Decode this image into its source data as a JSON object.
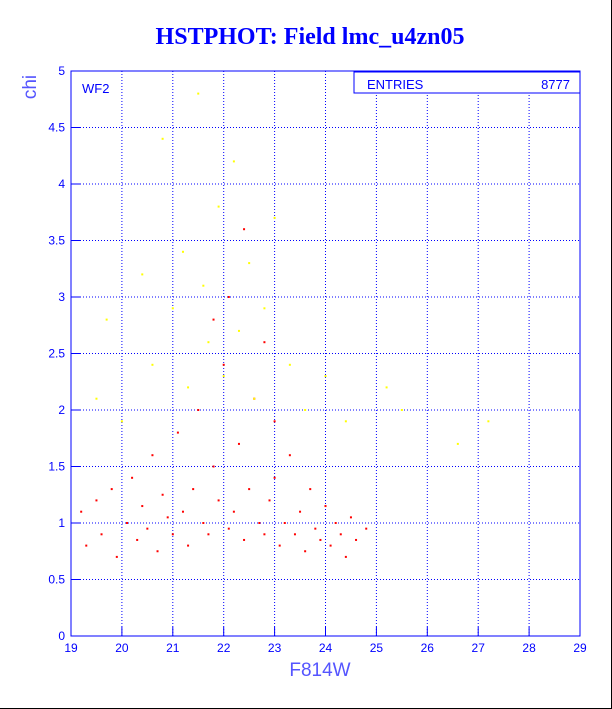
{
  "chart_data": {
    "type": "scatter",
    "title": "HSTPHOT: Field lmc_u4zn05",
    "panel_label": "WF2",
    "xlabel": "F814W",
    "ylabel": "chi",
    "xlim": [
      19,
      29
    ],
    "ylim": [
      0,
      5
    ],
    "x_ticks": [
      "19",
      "20",
      "21",
      "22",
      "23",
      "24",
      "25",
      "26",
      "27",
      "28",
      "29"
    ],
    "y_ticks": [
      "0",
      "0.5",
      "1",
      "1.5",
      "2",
      "2.5",
      "3",
      "3.5",
      "4",
      "4.5",
      "5"
    ],
    "grid": true,
    "stats_box": {
      "label": "ENTRIES",
      "value": "8777"
    },
    "colors": {
      "primary": "#ff0000",
      "secondary": "#ffff00",
      "axes": "#0000ff",
      "grid": "#0000ff"
    },
    "series": [
      {
        "color": "#ff0000",
        "points": [
          [
            19.2,
            1.1
          ],
          [
            19.3,
            0.8
          ],
          [
            19.5,
            1.2
          ],
          [
            19.6,
            0.9
          ],
          [
            19.8,
            1.3
          ],
          [
            19.9,
            0.7
          ],
          [
            20.1,
            1.0
          ],
          [
            20.2,
            1.4
          ],
          [
            20.3,
            0.85
          ],
          [
            20.4,
            1.15
          ],
          [
            20.5,
            0.95
          ],
          [
            20.6,
            1.6
          ],
          [
            20.7,
            0.75
          ],
          [
            20.8,
            1.25
          ],
          [
            20.9,
            1.05
          ],
          [
            21.0,
            0.9
          ],
          [
            21.1,
            1.8
          ],
          [
            21.2,
            1.1
          ],
          [
            21.3,
            0.8
          ],
          [
            21.4,
            1.3
          ],
          [
            21.5,
            2.0
          ],
          [
            21.6,
            1.0
          ],
          [
            21.7,
            0.9
          ],
          [
            21.8,
            1.5
          ],
          [
            21.9,
            1.2
          ],
          [
            22.0,
            2.4
          ],
          [
            22.1,
            0.95
          ],
          [
            22.2,
            1.1
          ],
          [
            22.3,
            1.7
          ],
          [
            22.4,
            0.85
          ],
          [
            22.5,
            1.3
          ],
          [
            22.6,
            2.1
          ],
          [
            22.7,
            1.0
          ],
          [
            22.8,
            0.9
          ],
          [
            22.9,
            1.2
          ],
          [
            23.0,
            1.4
          ],
          [
            23.1,
            0.8
          ],
          [
            23.2,
            1.0
          ],
          [
            23.3,
            1.6
          ],
          [
            23.4,
            0.9
          ],
          [
            23.5,
            1.1
          ],
          [
            23.6,
            0.75
          ],
          [
            23.7,
            1.3
          ],
          [
            23.8,
            0.95
          ],
          [
            23.9,
            0.85
          ],
          [
            24.0,
            1.15
          ],
          [
            24.1,
            0.8
          ],
          [
            24.2,
            1.0
          ],
          [
            24.3,
            0.9
          ],
          [
            24.4,
            0.7
          ],
          [
            24.5,
            1.05
          ],
          [
            24.6,
            0.85
          ],
          [
            24.8,
            0.95
          ],
          [
            22.1,
            3.0
          ],
          [
            22.4,
            3.6
          ],
          [
            21.8,
            2.8
          ],
          [
            22.8,
            2.6
          ],
          [
            23.0,
            1.9
          ]
        ]
      },
      {
        "color": "#ffff00",
        "points": [
          [
            19.5,
            2.1
          ],
          [
            19.7,
            2.8
          ],
          [
            20.0,
            1.9
          ],
          [
            20.4,
            3.2
          ],
          [
            20.6,
            2.4
          ],
          [
            20.8,
            4.4
          ],
          [
            21.0,
            2.9
          ],
          [
            21.2,
            3.4
          ],
          [
            21.3,
            2.2
          ],
          [
            21.5,
            4.8
          ],
          [
            21.6,
            3.1
          ],
          [
            21.7,
            2.6
          ],
          [
            21.9,
            3.8
          ],
          [
            22.0,
            2.3
          ],
          [
            22.2,
            4.2
          ],
          [
            22.3,
            2.7
          ],
          [
            22.5,
            3.3
          ],
          [
            22.6,
            2.1
          ],
          [
            22.8,
            2.9
          ],
          [
            23.0,
            3.7
          ],
          [
            23.3,
            2.4
          ],
          [
            23.6,
            2.0
          ],
          [
            24.0,
            2.3
          ],
          [
            24.4,
            1.9
          ],
          [
            25.2,
            2.2
          ],
          [
            25.5,
            2.0
          ],
          [
            26.6,
            1.7
          ],
          [
            27.2,
            1.9
          ]
        ]
      }
    ]
  }
}
